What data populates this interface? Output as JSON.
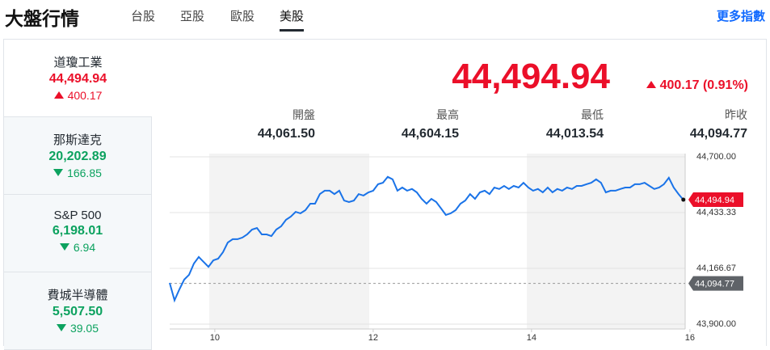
{
  "header": {
    "title": "大盤行情",
    "tabs": [
      "台股",
      "亞股",
      "歐股",
      "美股"
    ],
    "active_tab": 3,
    "more_link": "更多指數"
  },
  "sidebar": [
    {
      "name": "道瓊工業",
      "value": "44,494.94",
      "change": "400.17",
      "direction": "up"
    },
    {
      "name": "那斯達克",
      "value": "20,202.89",
      "change": "166.85",
      "direction": "down"
    },
    {
      "name": "S&P 500",
      "value": "6,198.01",
      "change": "6.94",
      "direction": "down"
    },
    {
      "name": "費城半導體",
      "value": "5,507.50",
      "change": "39.05",
      "direction": "down"
    }
  ],
  "active_item": 0,
  "quote": {
    "price": "44,494.94",
    "change": "400.17 (0.91%)",
    "direction": "up",
    "stats": [
      {
        "label": "開盤",
        "value": "44,061.50"
      },
      {
        "label": "最高",
        "value": "44,604.15"
      },
      {
        "label": "最低",
        "value": "44,013.54"
      },
      {
        "label": "昨收",
        "value": "44,094.77"
      }
    ]
  },
  "chart_data": {
    "type": "line",
    "x": [
      9.43,
      9.491,
      9.552,
      9.614,
      9.675,
      9.736,
      9.797,
      9.858,
      9.92,
      9.981,
      10.042,
      10.103,
      10.164,
      10.226,
      10.287,
      10.348,
      10.409,
      10.47,
      10.532,
      10.593,
      10.654,
      10.715,
      10.776,
      10.838,
      10.899,
      10.96,
      11.021,
      11.082,
      11.144,
      11.205,
      11.266,
      11.327,
      11.388,
      11.45,
      11.511,
      11.572,
      11.633,
      11.694,
      11.756,
      11.817,
      11.878,
      11.939,
      12.0,
      12.062,
      12.123,
      12.184,
      12.245,
      12.306,
      12.368,
      12.429,
      12.49,
      12.551,
      12.612,
      12.674,
      12.735,
      12.796,
      12.857,
      12.918,
      12.98,
      13.041,
      13.102,
      13.163,
      13.224,
      13.286,
      13.347,
      13.408,
      13.469,
      13.53,
      13.592,
      13.653,
      13.714,
      13.775,
      13.836,
      13.898,
      13.959,
      14.02,
      14.081,
      14.142,
      14.204,
      14.265,
      14.326,
      14.387,
      14.448,
      14.51,
      14.571,
      14.632,
      14.693,
      14.754,
      14.816,
      14.877,
      14.938,
      14.999,
      15.06,
      15.122,
      15.183,
      15.244,
      15.305,
      15.366,
      15.428,
      15.489,
      15.55,
      15.611,
      15.672,
      15.734,
      15.795,
      15.856,
      15.917
    ],
    "series": [
      {
        "name": "道瓊工業",
        "color": "#1a73e8",
        "values": [
          44097,
          44014,
          44066,
          44113,
          44136,
          44190,
          44221,
          44198,
          44174,
          44205,
          44213,
          44244,
          44290,
          44306,
          44306,
          44314,
          44329,
          44352,
          44360,
          44329,
          44329,
          44321,
          44352,
          44368,
          44399,
          44414,
          44437,
          44430,
          44445,
          44476,
          44476,
          44522,
          44538,
          44538,
          44522,
          44538,
          44491,
          44484,
          44491,
          44522,
          44515,
          44530,
          44538,
          44569,
          44576,
          44604,
          44592,
          44538,
          44553,
          44538,
          44546,
          44530,
          44499,
          44476,
          44499,
          44484,
          44453,
          44422,
          44430,
          44445,
          44476,
          44491,
          44522,
          44499,
          44530,
          44538,
          44522,
          44553,
          44546,
          44561,
          44546,
          44561,
          44553,
          44576,
          44553,
          44538,
          44546,
          44530,
          44553,
          44530,
          44546,
          44538,
          44553,
          44546,
          44561,
          44561,
          44569,
          44576,
          44592,
          44576,
          44530,
          44538,
          44538,
          44546,
          44553,
          44553,
          44569,
          44569,
          44576,
          44561,
          44546,
          44553,
          44569,
          44600,
          44553,
          44522,
          44494.94
        ]
      }
    ],
    "xlim": [
      9.43,
      15.94
    ],
    "xticks": [
      10,
      12,
      14,
      16
    ],
    "ylim": [
      43900,
      44700
    ],
    "yticks": [
      {
        "value": 43900,
        "label": "43,900.00"
      },
      {
        "value": 44166.67,
        "label": "44,166.67"
      },
      {
        "value": 44433.33,
        "label": "44,433.33"
      },
      {
        "value": 44700,
        "label": "44,700.00"
      }
    ],
    "reference_line": {
      "value": 44094.77,
      "label": "44,094.77",
      "color": "#999999"
    },
    "last_label": "44,494.94",
    "last_color": "#eb0f29",
    "grid": true
  }
}
